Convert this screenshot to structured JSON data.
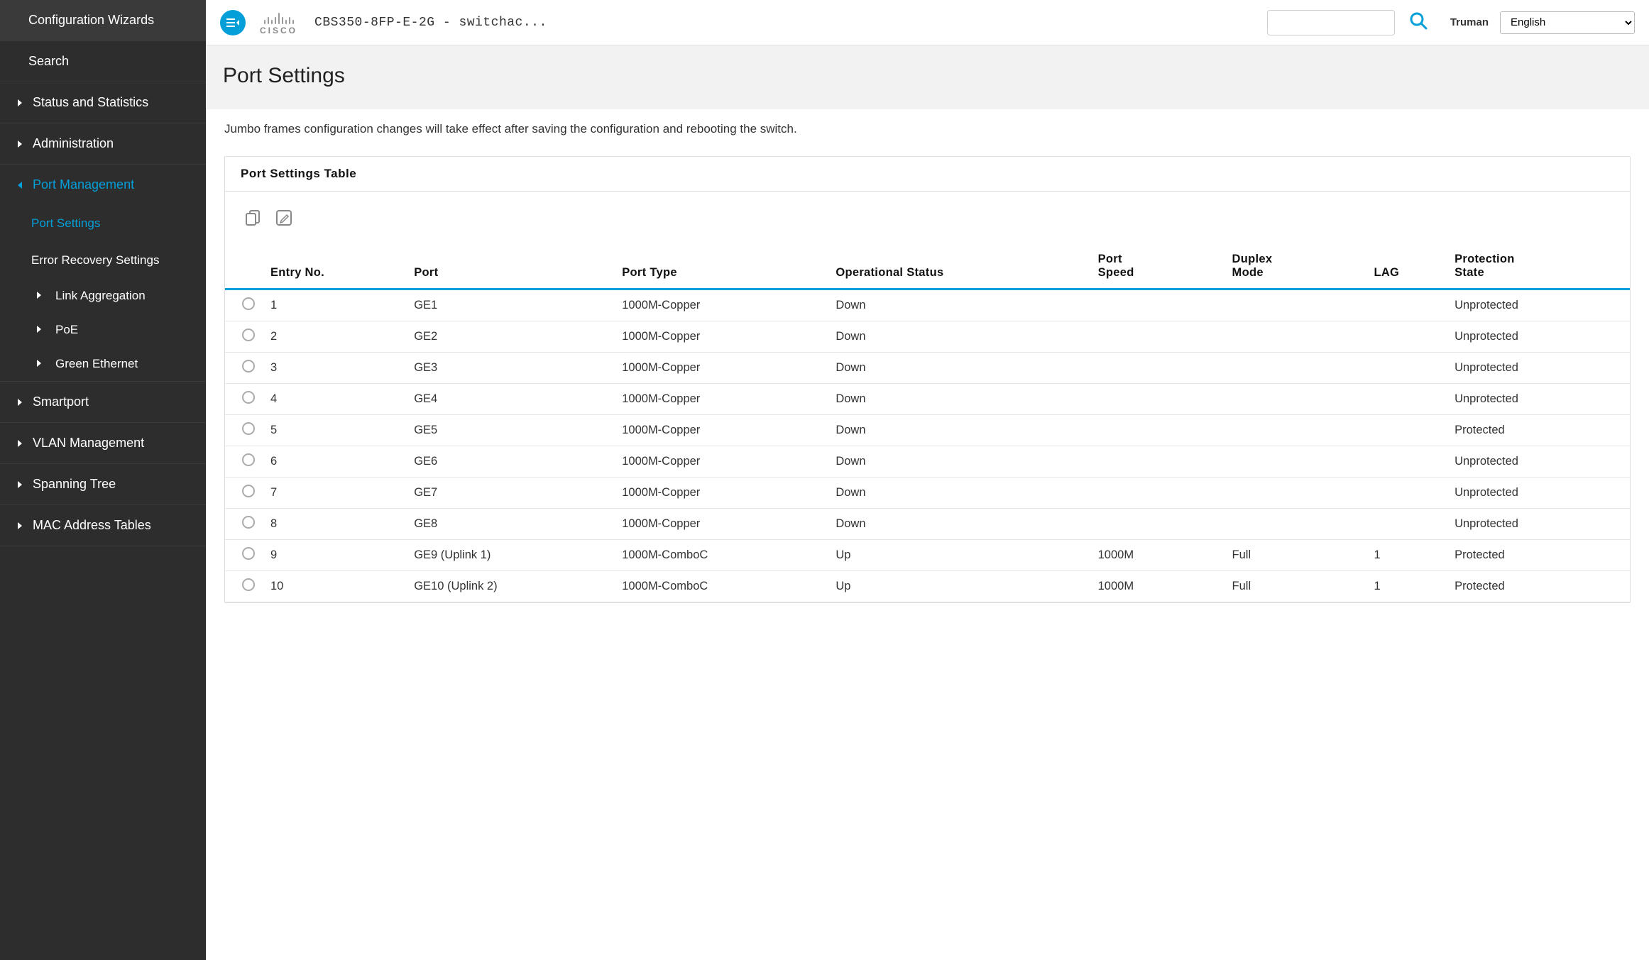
{
  "header": {
    "device_name": "CBS350-8FP-E-2G - switchac...",
    "username": "Truman",
    "language": "English"
  },
  "sidebar": {
    "config_wizards": "Configuration Wizards",
    "search": "Search",
    "status_stats": "Status and Statistics",
    "administration": "Administration",
    "port_mgmt": "Port Management",
    "port_settings": "Port Settings",
    "error_recovery": "Error Recovery Settings",
    "link_agg": "Link Aggregation",
    "poe": "PoE",
    "green_eth": "Green Ethernet",
    "smartport": "Smartport",
    "vlan_mgmt": "VLAN Management",
    "spanning_tree": "Spanning Tree",
    "mac_addr": "MAC Address Tables"
  },
  "page": {
    "title": "Port Settings",
    "notice": "Jumbo frames configuration changes will take effect after saving the configuration and rebooting the switch.",
    "table_title": "Port Settings Table"
  },
  "columns": {
    "entry_no": "Entry No.",
    "port": "Port",
    "port_type": "Port Type",
    "op_status": "Operational Status",
    "port_speed": "Port Speed",
    "duplex": "Duplex Mode",
    "lag": "LAG",
    "protection": "Protection State"
  },
  "rows": [
    {
      "entry": "1",
      "port": "GE1",
      "type": "1000M-Copper",
      "status": "Down",
      "speed": "",
      "duplex": "",
      "lag": "",
      "protection": "Unprotected"
    },
    {
      "entry": "2",
      "port": "GE2",
      "type": "1000M-Copper",
      "status": "Down",
      "speed": "",
      "duplex": "",
      "lag": "",
      "protection": "Unprotected"
    },
    {
      "entry": "3",
      "port": "GE3",
      "type": "1000M-Copper",
      "status": "Down",
      "speed": "",
      "duplex": "",
      "lag": "",
      "protection": "Unprotected"
    },
    {
      "entry": "4",
      "port": "GE4",
      "type": "1000M-Copper",
      "status": "Down",
      "speed": "",
      "duplex": "",
      "lag": "",
      "protection": "Unprotected"
    },
    {
      "entry": "5",
      "port": "GE5",
      "type": "1000M-Copper",
      "status": "Down",
      "speed": "",
      "duplex": "",
      "lag": "",
      "protection": "Protected"
    },
    {
      "entry": "6",
      "port": "GE6",
      "type": "1000M-Copper",
      "status": "Down",
      "speed": "",
      "duplex": "",
      "lag": "",
      "protection": "Unprotected"
    },
    {
      "entry": "7",
      "port": "GE7",
      "type": "1000M-Copper",
      "status": "Down",
      "speed": "",
      "duplex": "",
      "lag": "",
      "protection": "Unprotected"
    },
    {
      "entry": "8",
      "port": "GE8",
      "type": "1000M-Copper",
      "status": "Down",
      "speed": "",
      "duplex": "",
      "lag": "",
      "protection": "Unprotected"
    },
    {
      "entry": "9",
      "port": "GE9 (Uplink 1)",
      "type": "1000M-ComboC",
      "status": "Up",
      "speed": "1000M",
      "duplex": "Full",
      "lag": "1",
      "protection": "Protected"
    },
    {
      "entry": "10",
      "port": "GE10 (Uplink 2)",
      "type": "1000M-ComboC",
      "status": "Up",
      "speed": "1000M",
      "duplex": "Full",
      "lag": "1",
      "protection": "Protected"
    }
  ]
}
